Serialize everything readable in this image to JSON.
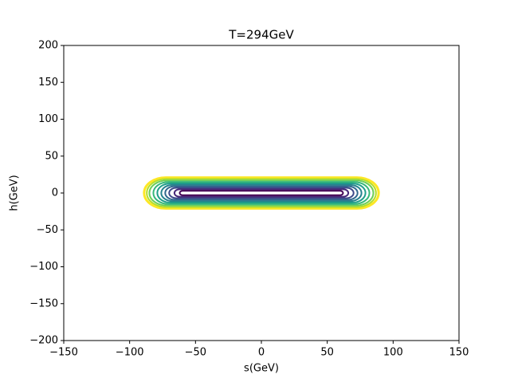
{
  "chart_data": {
    "type": "contour",
    "title": "T=294GeV",
    "x_label": "s(GeV)",
    "y_label": "h(GeV)",
    "xlim": [
      -150,
      150
    ],
    "ylim": [
      -200,
      200
    ],
    "xticks": [
      {
        "value": -150,
        "label": "−150"
      },
      {
        "value": -100,
        "label": "−100"
      },
      {
        "value": -50,
        "label": "−50"
      },
      0,
      50,
      100,
      150
    ],
    "yticks": [
      {
        "value": -200,
        "label": "−200"
      },
      {
        "value": -150,
        "label": "−150"
      },
      {
        "value": -100,
        "label": "−100"
      },
      {
        "value": -50,
        "label": "−50"
      },
      0,
      50,
      100,
      150,
      200
    ],
    "contours": [
      {
        "color": "#fde725",
        "s_range": [
          -89,
          89
        ],
        "h_half": 21
      },
      {
        "color": "#b5de2b",
        "s_range": [
          -87,
          87
        ],
        "h_half": 19
      },
      {
        "color": "#6ece58",
        "s_range": [
          -85,
          85
        ],
        "h_half": 17
      },
      {
        "color": "#35b779",
        "s_range": [
          -82,
          82
        ],
        "h_half": 15
      },
      {
        "color": "#1f9e89",
        "s_range": [
          -79,
          79
        ],
        "h_half": 13
      },
      {
        "color": "#26828e",
        "s_range": [
          -76,
          76
        ],
        "h_half": 11
      },
      {
        "color": "#31688e",
        "s_range": [
          -73,
          73
        ],
        "h_half": 9
      },
      {
        "color": "#3e4989",
        "s_range": [
          -70,
          70
        ],
        "h_half": 7
      },
      {
        "color": "#482878",
        "s_range": [
          -66,
          66
        ],
        "h_half": 5
      },
      {
        "color": "#440154",
        "s_range": [
          -62,
          62
        ],
        "h_half": 3
      }
    ]
  }
}
